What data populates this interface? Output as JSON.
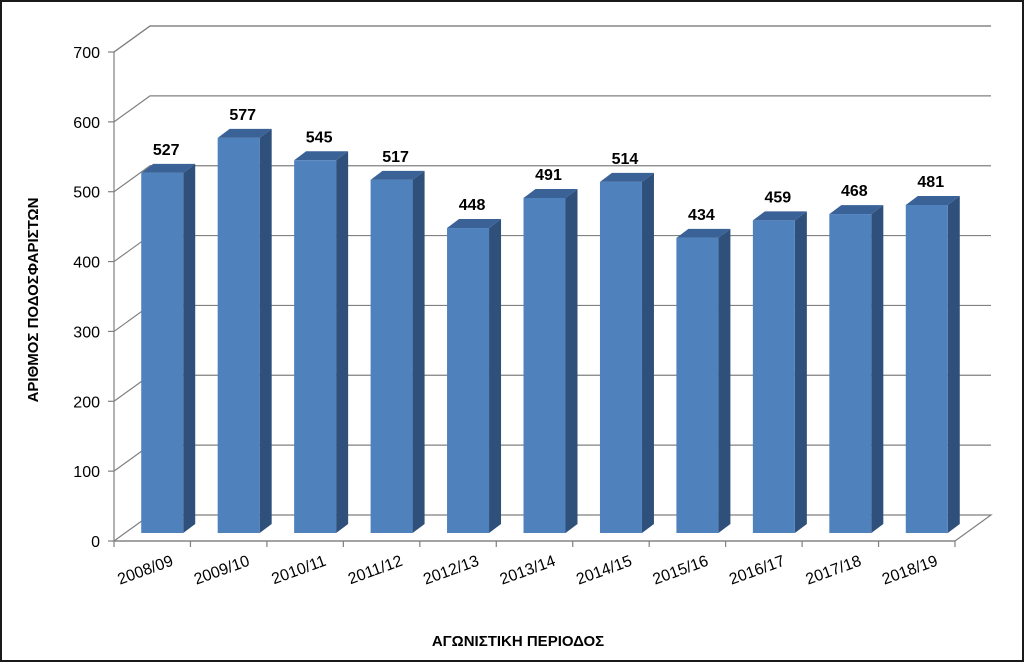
{
  "chart_data": {
    "type": "bar",
    "categories": [
      "2008/09",
      "2009/10",
      "2010/11",
      "2011/12",
      "2012/13",
      "2013/14",
      "2014/15",
      "2015/16",
      "2016/17",
      "2017/18",
      "2018/19"
    ],
    "values": [
      527,
      577,
      545,
      517,
      448,
      491,
      514,
      434,
      459,
      468,
      481
    ],
    "title": "",
    "xlabel": "ΑΓΩΝΙΣΤΙΚΗ ΠΕΡΙΟΔΟΣ",
    "ylabel": "ΑΡΙΘΜΟΣ ΠΟΔΟΣΦΑΡΙΣΤΩΝ",
    "ylim": [
      0,
      700
    ],
    "yticks": [
      0,
      100,
      200,
      300,
      400,
      500,
      600,
      700
    ],
    "grid": true,
    "legend": "none",
    "style": "3d-column",
    "colors": {
      "bar_front": "#4F81BD",
      "bar_side": "#2F507A",
      "bar_top": "#3A6297"
    }
  }
}
